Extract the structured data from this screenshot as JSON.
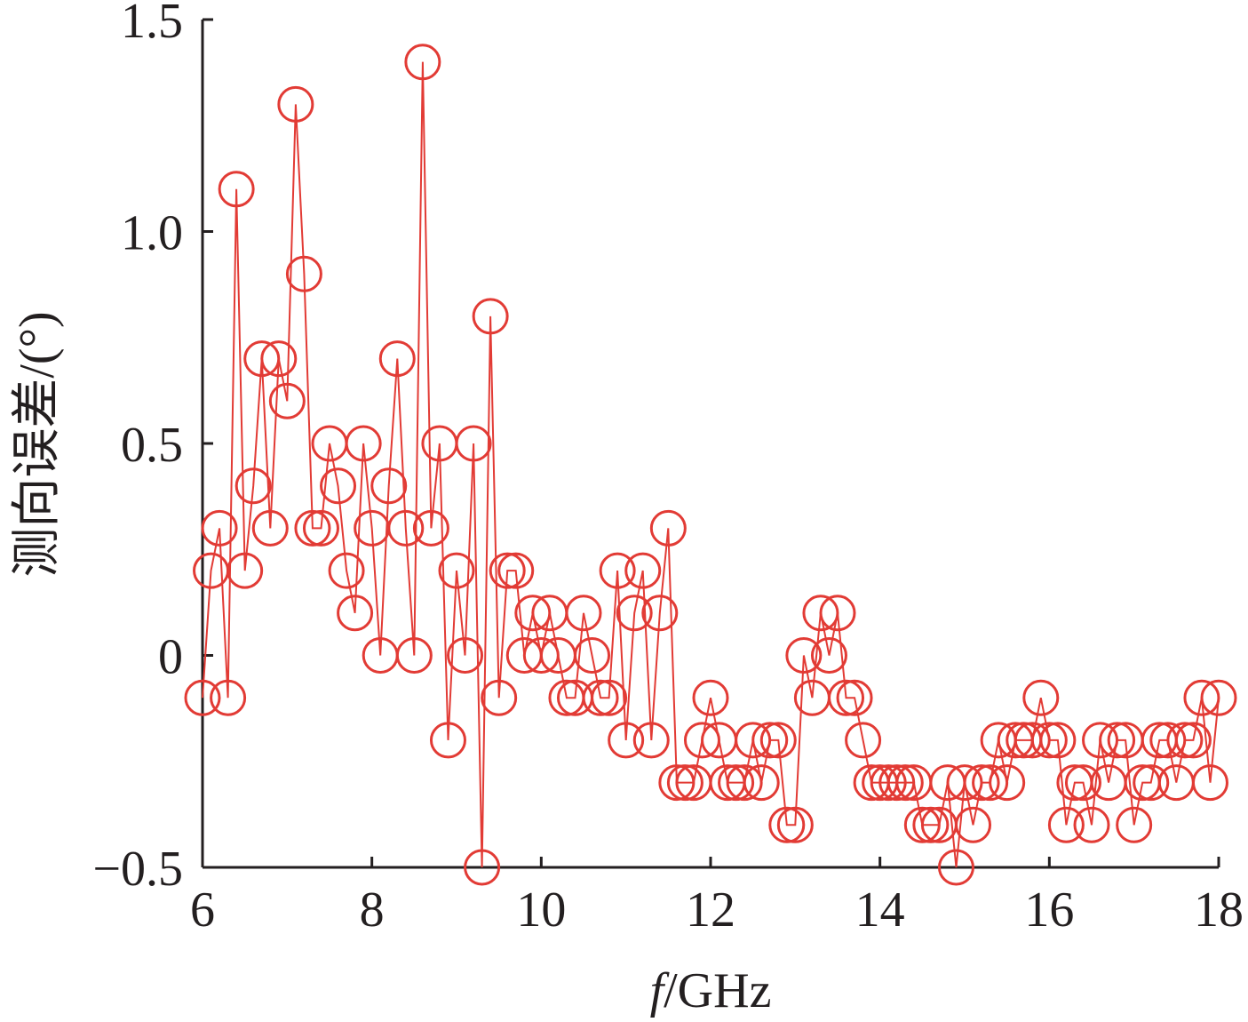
{
  "chart_data": {
    "type": "line",
    "title": "",
    "xlabel_italic": "f",
    "xlabel_rest": "/GHz",
    "ylabel": "测向误差/(°)",
    "xlim": [
      6,
      18
    ],
    "ylim": [
      -0.5,
      1.5
    ],
    "xticks": [
      6,
      8,
      10,
      12,
      14,
      16,
      18
    ],
    "yticks": [
      -0.5,
      0,
      0.5,
      1.0,
      1.5
    ],
    "ytick_labels": [
      "−0.5",
      "0",
      "0.5",
      "1.0",
      "1.5"
    ],
    "grid": false,
    "legend": "none",
    "marker": "circle",
    "colors": {
      "series": "#e23b35",
      "axis": "#231f20"
    },
    "series": [
      {
        "x": [
          6.0,
          6.1,
          6.2,
          6.3,
          6.4,
          6.5,
          6.6,
          6.7,
          6.8,
          6.9,
          7.0,
          7.1,
          7.2,
          7.3,
          7.4,
          7.5,
          7.6,
          7.7,
          7.8,
          7.9,
          8.0,
          8.1,
          8.2,
          8.3,
          8.4,
          8.5,
          8.6,
          8.7,
          8.8,
          8.9,
          9.0,
          9.1,
          9.2,
          9.3,
          9.4,
          9.5,
          9.6,
          9.7,
          9.8,
          9.9,
          10.0,
          10.1,
          10.2,
          10.3,
          10.4,
          10.5,
          10.6,
          10.7,
          10.8,
          10.9,
          11.0,
          11.1,
          11.2,
          11.3,
          11.4,
          11.5,
          11.6,
          11.7,
          11.8,
          11.9,
          12.0,
          12.1,
          12.2,
          12.3,
          12.4,
          12.5,
          12.6,
          12.7,
          12.8,
          12.9,
          13.0,
          13.1,
          13.2,
          13.3,
          13.4,
          13.5,
          13.6,
          13.7,
          13.8,
          13.9,
          14.0,
          14.1,
          14.2,
          14.3,
          14.4,
          14.5,
          14.6,
          14.7,
          14.8,
          14.9,
          15.0,
          15.1,
          15.2,
          15.3,
          15.4,
          15.5,
          15.6,
          15.7,
          15.8,
          15.9,
          16.0,
          16.1,
          16.2,
          16.3,
          16.4,
          16.5,
          16.6,
          16.7,
          16.8,
          16.9,
          17.0,
          17.1,
          17.2,
          17.3,
          17.4,
          17.5,
          17.6,
          17.7,
          17.8,
          17.9,
          18.0
        ],
        "y": [
          -0.1,
          0.2,
          0.3,
          -0.1,
          1.1,
          0.2,
          0.4,
          0.7,
          0.3,
          0.7,
          0.6,
          1.3,
          0.9,
          0.3,
          0.3,
          0.5,
          0.4,
          0.2,
          0.1,
          0.5,
          0.3,
          0.0,
          0.4,
          0.7,
          0.3,
          0.0,
          1.4,
          0.3,
          0.5,
          -0.2,
          0.2,
          0.0,
          0.5,
          -0.5,
          0.8,
          -0.1,
          0.2,
          0.2,
          0.0,
          0.1,
          0.0,
          0.1,
          0.0,
          -0.1,
          -0.1,
          0.1,
          0.0,
          -0.1,
          -0.1,
          0.2,
          -0.2,
          0.1,
          0.2,
          -0.2,
          0.1,
          0.3,
          -0.3,
          -0.3,
          -0.3,
          -0.2,
          -0.1,
          -0.2,
          -0.3,
          -0.3,
          -0.3,
          -0.2,
          -0.3,
          -0.2,
          -0.2,
          -0.4,
          -0.4,
          0.0,
          -0.1,
          0.1,
          0.0,
          0.1,
          -0.1,
          -0.1,
          -0.2,
          -0.3,
          -0.3,
          -0.3,
          -0.3,
          -0.3,
          -0.3,
          -0.4,
          -0.4,
          -0.4,
          -0.3,
          -0.5,
          -0.3,
          -0.4,
          -0.3,
          -0.3,
          -0.2,
          -0.3,
          -0.2,
          -0.2,
          -0.2,
          -0.1,
          -0.2,
          -0.2,
          -0.4,
          -0.3,
          -0.3,
          -0.4,
          -0.2,
          -0.3,
          -0.2,
          -0.2,
          -0.4,
          -0.3,
          -0.3,
          -0.2,
          -0.2,
          -0.3,
          -0.2,
          -0.2,
          -0.1,
          -0.3,
          -0.1
        ]
      }
    ]
  }
}
